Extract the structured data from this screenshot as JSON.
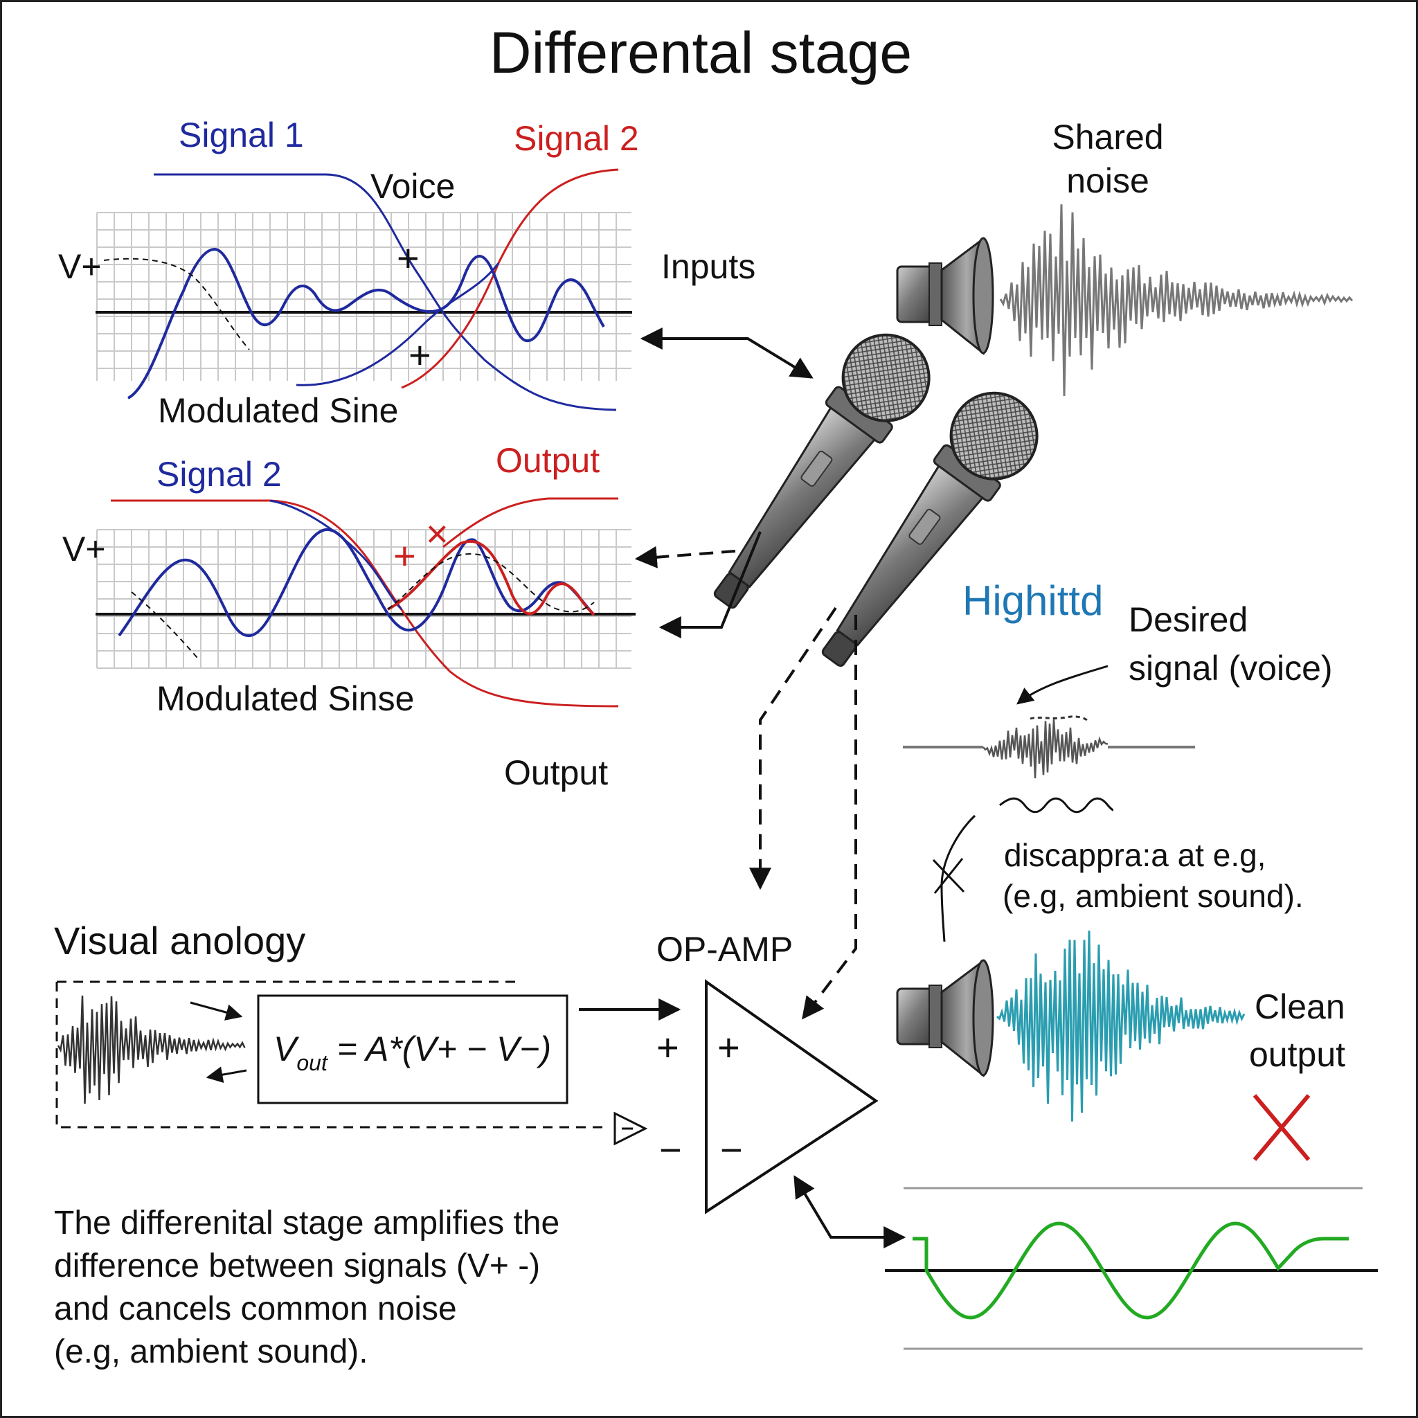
{
  "title": "Differental stage",
  "panel_top": {
    "signal_a": "Signal 1",
    "signal_b": "Signal 2",
    "voice": "Voice",
    "vplus": "V+",
    "plus_a": "+",
    "plus_b": "+",
    "modulated": "Modulated Sine"
  },
  "panel_bottom": {
    "signal": "Signal 2",
    "output": "Output",
    "vplus": "V+",
    "plus": "+",
    "cross": "×",
    "modulated": "Modulated Sinse"
  },
  "labels": {
    "inputs": "Inputs",
    "shared_noise_1": "Shared",
    "shared_noise_2": "noise",
    "output": "Output",
    "highlighted": "Highittd",
    "desired_1": "Desired",
    "desired_2": "signal (voice)",
    "disappear_1": "discappra:a at e.g,",
    "disappear_2": "(e.g,  ambient sound).",
    "clean_1": "Clean",
    "clean_2": "output",
    "opamp": "OP-AMP",
    "visual_analogy": "Visual anology"
  },
  "formula": {
    "v": "V",
    "sub": "out",
    "rest": " = A*(V+ − V−)"
  },
  "opamp_signs": {
    "plus_outer": "+",
    "plus_inner": "+",
    "minus_outer": "−",
    "minus_inner": "−"
  },
  "note": [
    "The differenital stage amplifies the",
    "difference between signals  (V+ -)",
    "  and cancels common noise",
    " (e.g,  ambient sound)."
  ],
  "colors": {
    "blue_trace": "#1f2a9e",
    "red_trace": "#cc1f1f",
    "teal_wave": "#2a9db0",
    "green_wave": "#22aa22",
    "highlight_text": "#1f77b4",
    "gray_wave": "#777777"
  },
  "icons": [
    "speaker-icon",
    "microphone-icon",
    "x-mark-icon"
  ]
}
